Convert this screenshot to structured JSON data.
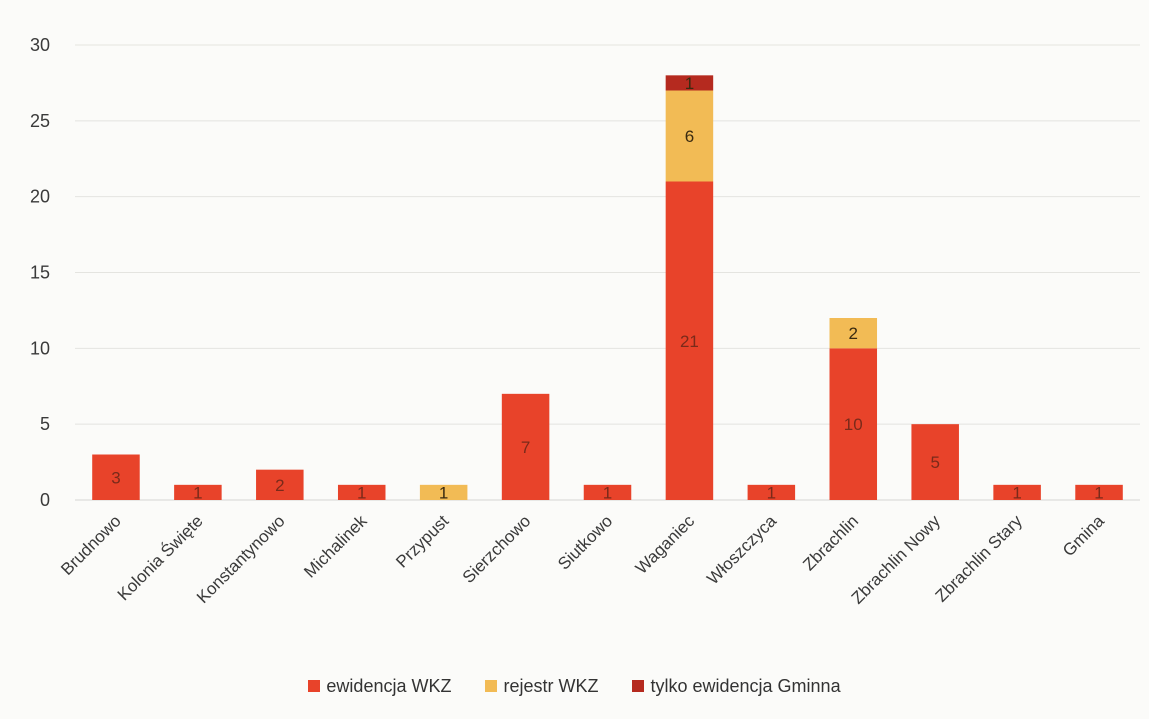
{
  "chart_data": {
    "type": "bar",
    "stacked": true,
    "title": "",
    "xlabel": "",
    "ylabel": "",
    "ylim": [
      0,
      30
    ],
    "yticks": [
      0,
      5,
      10,
      15,
      20,
      25,
      30
    ],
    "grid": true,
    "legend_position": "bottom",
    "categories": [
      "Brudnowo",
      "Kolonia Święte",
      "Konstantynowo",
      "Michalinek",
      "Przypust",
      "Sierzchowo",
      "Siutkowo",
      "Waganiec",
      "Włoszczyca",
      "Zbrachlin",
      "Zbrachlin Nowy",
      "Zbrachlin Stary",
      "Gmina"
    ],
    "series": [
      {
        "name": "ewidencja WKZ",
        "color": "#e8432a",
        "values": [
          3,
          1,
          2,
          1,
          0,
          7,
          1,
          21,
          1,
          10,
          5,
          1,
          1
        ]
      },
      {
        "name": "rejestr WKZ",
        "color": "#f2bb55",
        "values": [
          0,
          0,
          0,
          0,
          1,
          0,
          0,
          6,
          0,
          2,
          0,
          0,
          0
        ]
      },
      {
        "name": "tylko ewidencja Gminna",
        "color": "#b52a1f",
        "values": [
          0,
          0,
          0,
          0,
          0,
          0,
          0,
          1,
          0,
          0,
          0,
          0,
          0
        ]
      }
    ]
  }
}
